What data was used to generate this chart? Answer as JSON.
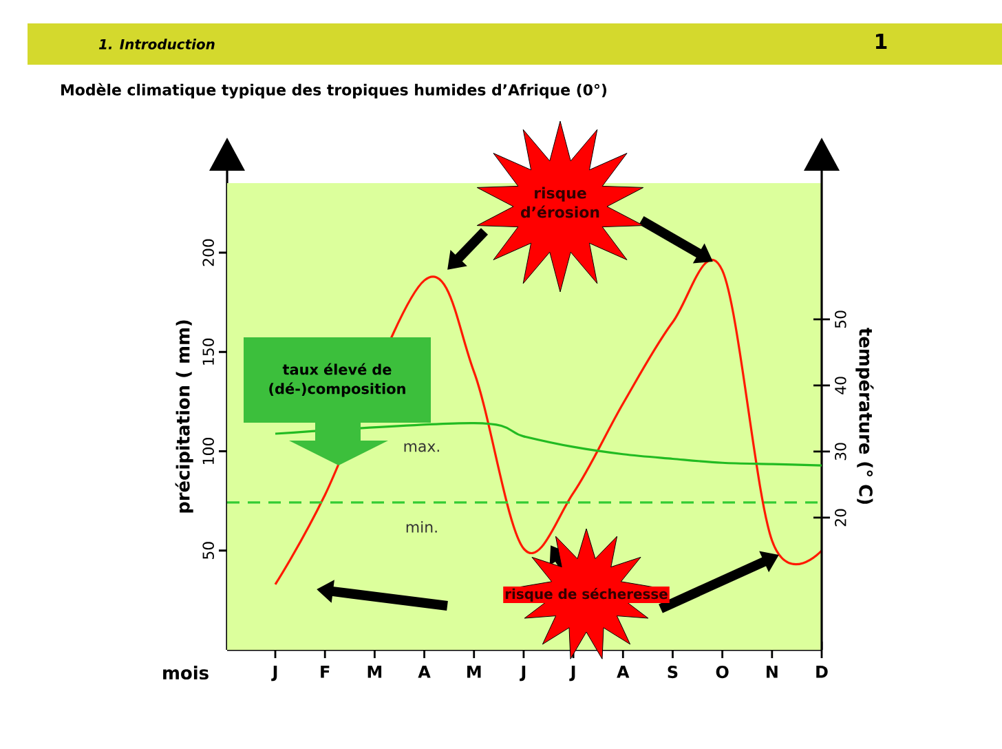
{
  "chart_data": {
    "type": "line",
    "title": "Modèle climatique typique des tropiques humides d’Afrique (0°)",
    "xlabel": "mois",
    "ylabel": "précipitation ( mm)",
    "y2label": "température (° C)",
    "annotations": [
      "1. Introduction",
      "1",
      "risque d’érosion",
      "taux élevé de (dé-)composition",
      "risque de sécheresse"
    ],
    "categories": [
      "J",
      "F",
      "M",
      "A",
      "M",
      "J",
      "J",
      "A",
      "S",
      "O",
      "N",
      "D"
    ],
    "ylim": [
      0,
      235
    ],
    "yticks": [
      50,
      100,
      150,
      200
    ],
    "y2lim": [
      0,
      70.6
    ],
    "y2ticks": [
      20,
      30,
      40,
      50
    ],
    "ref_lines": [
      {
        "axis": "y2",
        "value": 22.3,
        "label": "min.",
        "color": "#33cc33",
        "line_style": "dashed"
      }
    ],
    "series": [
      {
        "color": "#ff1a00",
        "line_style": "solid",
        "values": [
          33,
          78,
          null,
          186,
          140,
          51,
          79,
          124,
          165,
          191,
          55,
          50
        ]
      },
      {
        "name": "max.",
        "axis": "y2",
        "color": "#22bb22",
        "line_style": "solid",
        "values": [
          32.7,
          null,
          null,
          null,
          34.3,
          32.3,
          30.7,
          29.6,
          28.9,
          28.3,
          28.1,
          27.9
        ]
      }
    ]
  }
}
